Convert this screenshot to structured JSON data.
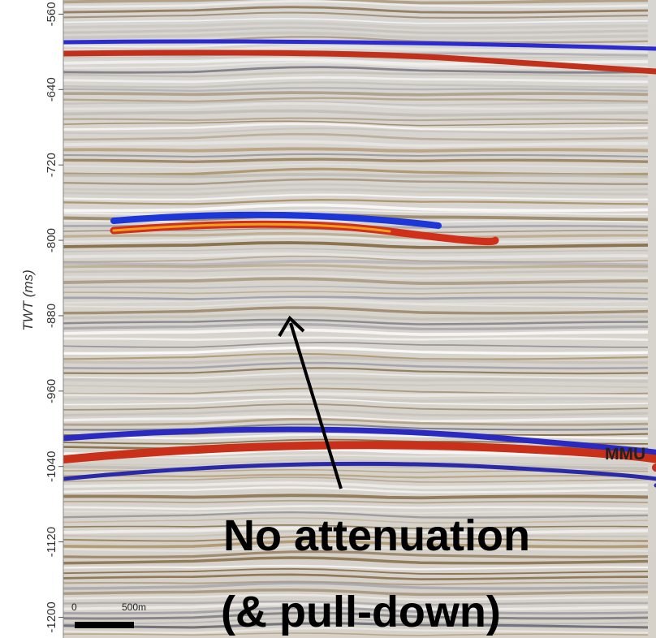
{
  "axis": {
    "label": "TWT (ms)",
    "ylim": [
      -545,
      -1222
    ],
    "yticks": [
      -560,
      -640,
      -720,
      -800,
      -880,
      -960,
      -1040,
      -1120,
      -1200
    ]
  },
  "annotations": {
    "horizon": "MMU",
    "note_line1": "No attenuation",
    "note_line2": "(& pull-down)"
  },
  "scale_bar": {
    "start": "0",
    "end": "500m"
  }
}
